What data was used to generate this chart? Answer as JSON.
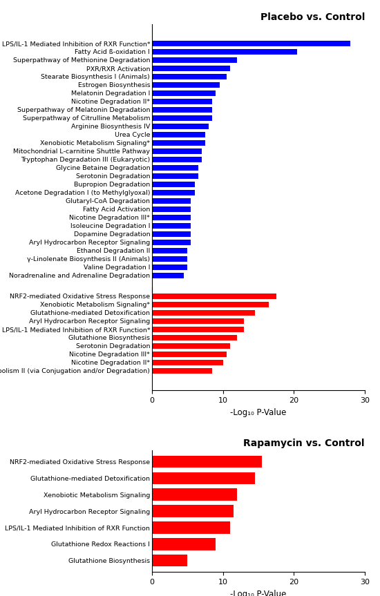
{
  "chart1_title": "Placebo vs. Control",
  "chart2_title": "Rapamycin vs. Control",
  "xlabel": "-Log₁₀ P-Value",
  "xlim": [
    0,
    30
  ],
  "xticks": [
    0,
    10,
    20,
    30
  ],
  "placebo_red_labels": [
    "NRF2-mediated Oxidative Stress Response",
    "Xenobiotic Metabolism Signaling*",
    "Glutathione-mediated Detoxification",
    "Aryl Hydrocarbon Receptor Signaling",
    "LPS/IL-1 Mediated Inhibition of RXR Function*",
    "Glutathione Biosynthesis",
    "Serotonin Degradation",
    "Nicotine Degradation III*",
    "Nicotine Degradation II*",
    "Thyroid Hormone Metabolism II (via Conjugation and/or Degradation)"
  ],
  "placebo_red_values": [
    17.5,
    16.5,
    14.5,
    13.0,
    13.0,
    12.0,
    11.0,
    10.5,
    10.0,
    8.5
  ],
  "placebo_blue_labels": [
    "LPS/IL-1 Mediated Inhibition of RXR Function*",
    "Fatty Acid ß-oxidation I",
    "Superpathway of Methionine Degradation",
    "PXR/RXR Activation",
    "Stearate Biosynthesis I (Animals)",
    "Estrogen Biosynthesis",
    "Melatonin Degradation I",
    "Nicotine Degradation II*",
    "Superpathway of Melatonin Degradation",
    "Superpathway of Citrulline Metabolism",
    "Arginine Biosynthesis IV",
    "Urea Cycle",
    "Xenobiotic Metabolism Signaling*",
    "Mitochondrial L-carnitine Shuttle Pathway",
    "Tryptophan Degradation III (Eukaryotic)",
    "Glycine Betaine Degradation",
    "Serotonin Degradation",
    "Bupropion Degradation",
    "Acetone Degradation I (to Methylglyoxal)",
    "Glutaryl-CoA Degradation",
    "Fatty Acid Activation",
    "Nicotine Degradation III*",
    "Isoleucine Degradation I",
    "Dopamine Degradation",
    "Aryl Hydrocarbon Receptor Signaling",
    "Ethanol Degradation II",
    "γ-Linolenate Biosynthesis II (Animals)",
    "Valine Degradation I",
    "Noradrenaline and Adrenaline Degradation"
  ],
  "placebo_blue_values": [
    28.0,
    20.5,
    12.0,
    11.0,
    10.5,
    9.5,
    9.0,
    8.5,
    8.5,
    8.5,
    8.0,
    7.5,
    7.5,
    7.0,
    7.0,
    6.5,
    6.5,
    6.0,
    6.0,
    5.5,
    5.5,
    5.5,
    5.5,
    5.5,
    5.5,
    5.0,
    5.0,
    5.0,
    4.5
  ],
  "rapamycin_labels": [
    "NRF2-mediated Oxidative Stress Response",
    "Glutathione-mediated Detoxification",
    "Xenobiotic Metabolism Signaling",
    "Aryl Hydrocarbon Receptor Signaling",
    "LPS/IL-1 Mediated Inhibition of RXR Function",
    "Glutathione Redox Reactions I",
    "Glutathione Biosynthesis"
  ],
  "rapamycin_values": [
    15.5,
    14.5,
    12.0,
    11.5,
    11.0,
    9.0,
    5.0
  ],
  "red_color": "#FF0000",
  "blue_color": "#0000FF",
  "bar_height": 0.72,
  "title_fontsize": 10,
  "label_fontsize": 6.8,
  "tick_fontsize": 8,
  "xlabel_fontsize": 8.5
}
